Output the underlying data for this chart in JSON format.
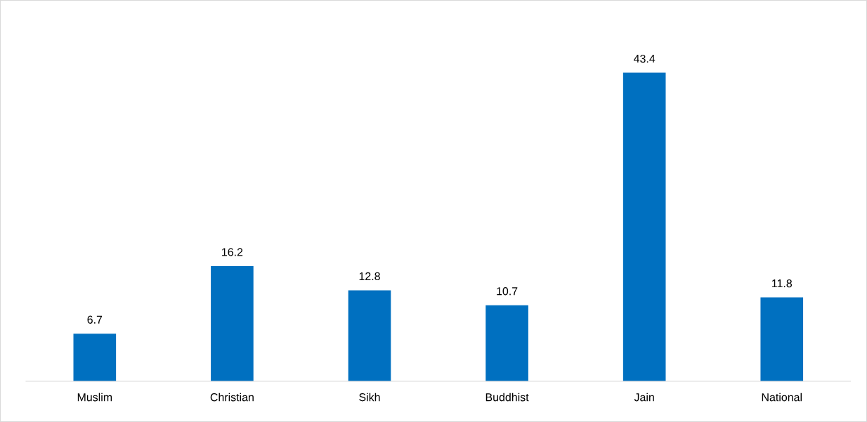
{
  "chart_data": {
    "type": "bar",
    "categories": [
      "Muslim",
      "Christian",
      "Sikh",
      "Buddhist",
      "Jain",
      "National"
    ],
    "values": [
      6.7,
      16.2,
      12.8,
      10.7,
      43.4,
      11.8
    ],
    "color": "#0070c0",
    "data_labels": true,
    "grid": false,
    "legend": false
  }
}
